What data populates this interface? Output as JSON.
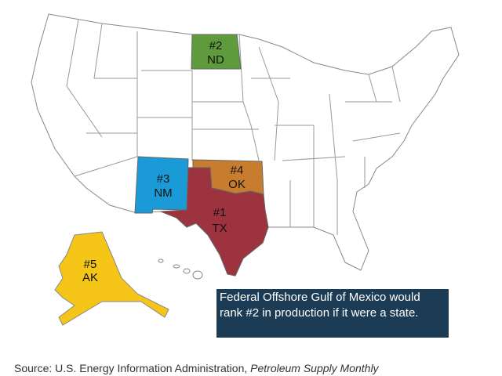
{
  "map": {
    "states": [
      {
        "rank": "#1",
        "abbr": "TX",
        "color": "#9e3340"
      },
      {
        "rank": "#2",
        "abbr": "ND",
        "color": "#5f9b3c"
      },
      {
        "rank": "#3",
        "abbr": "NM",
        "color": "#1a9bd7"
      },
      {
        "rank": "#4",
        "abbr": "OK",
        "color": "#c87d2e"
      },
      {
        "rank": "#5",
        "abbr": "AK",
        "color": "#f5c518"
      }
    ]
  },
  "callout": {
    "text": "Federal Offshore Gulf of Mexico would rank #2 in production if it were a state."
  },
  "source": {
    "text": "Source: U.S. Energy Information Administration, ",
    "publication": "Petroleum Supply Monthly"
  }
}
